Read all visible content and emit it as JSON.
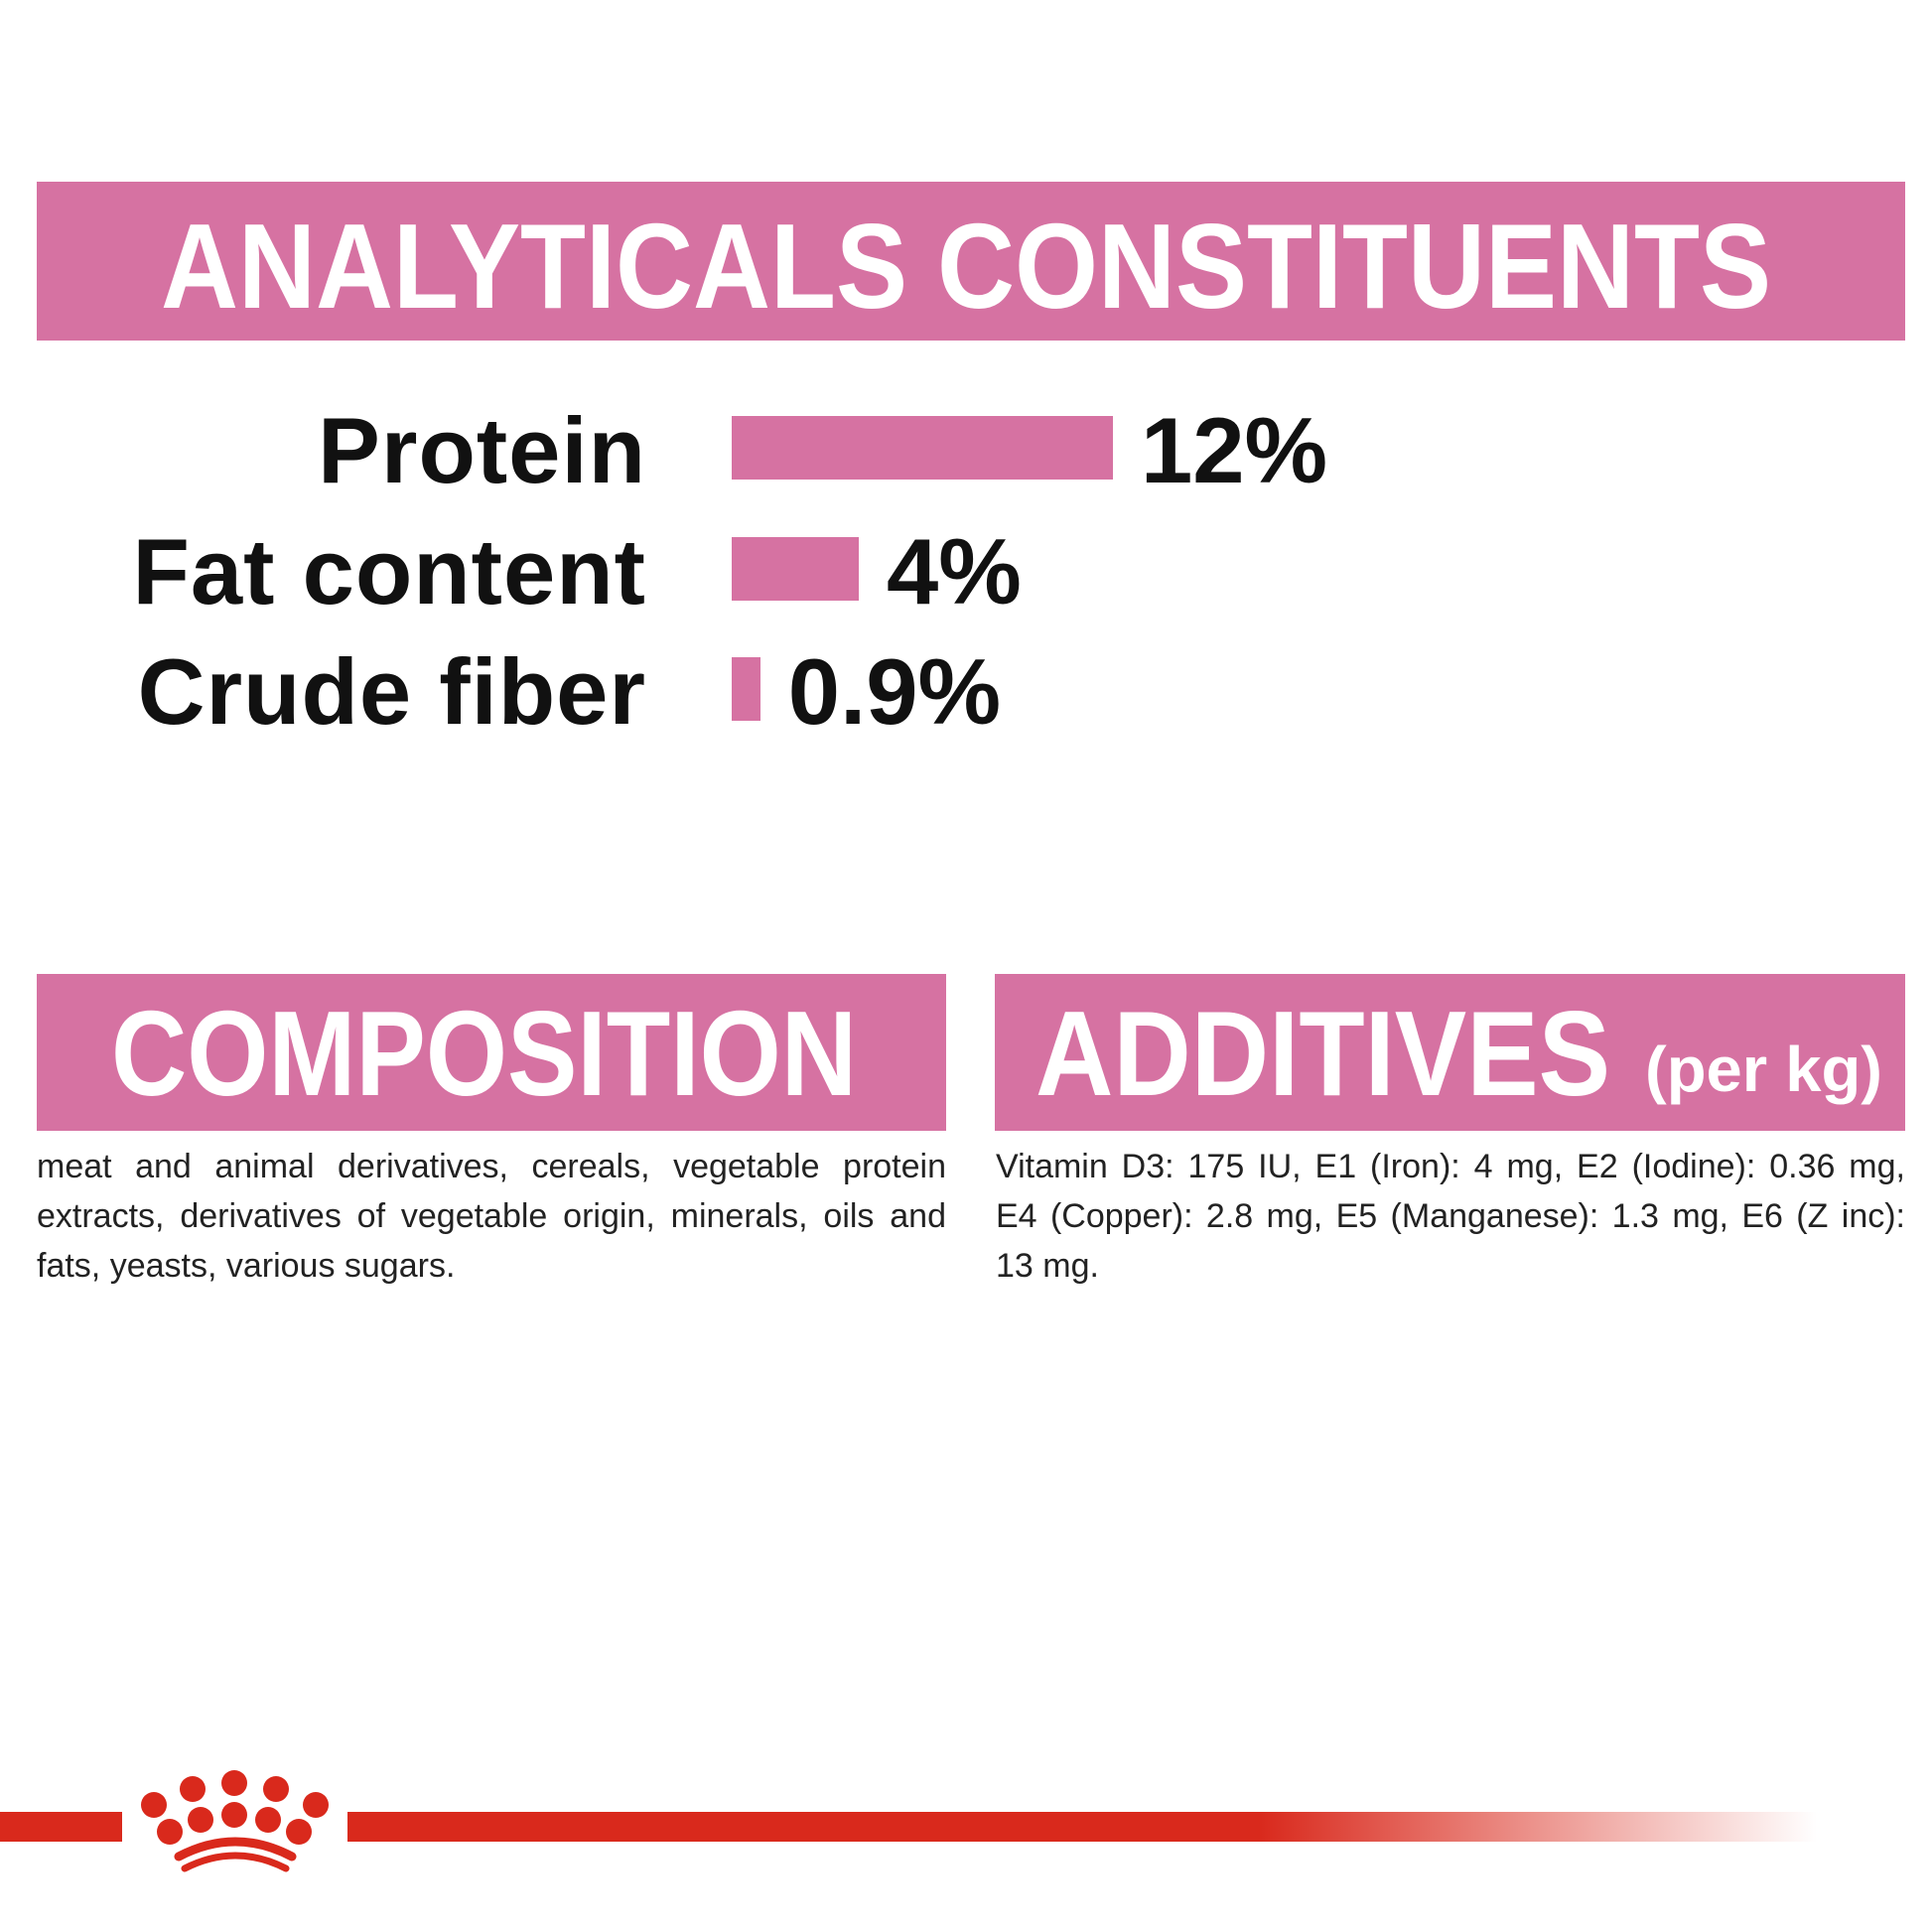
{
  "analytical": {
    "title": "ANALYTICALS CONSTITUENTS",
    "rows": [
      {
        "label": "Protein",
        "value_text": "12%",
        "value": 12
      },
      {
        "label": "Fat content",
        "value_text": "4%",
        "value": 4
      },
      {
        "label": "Crude fiber",
        "value_text": "0.9%",
        "value": 0.9
      }
    ]
  },
  "composition": {
    "title": "COMPOSITION",
    "text": "meat and animal derivatives, cereals, vegetable protein extracts, derivatives of vegetable origin, minerals, oils and fats, yeasts, various sugars."
  },
  "additives": {
    "title": "ADDITIVES",
    "subtitle": "(per kg)",
    "text": "Vitamin D3: 175 IU, E1 (Iron): 4 mg, E2 (Iodine): 0.36 mg, E4 (Copper): 2.8 mg, E5 (Manganese): 1.3 mg, E6 (Z inc): 13 mg."
  },
  "brand": {
    "logo": "Royal Canin crown",
    "logo_icon": "crown-icon"
  },
  "colors": {
    "accent_pink": "#d672a2",
    "brand_red": "#d9291c",
    "text": "#111111"
  }
}
